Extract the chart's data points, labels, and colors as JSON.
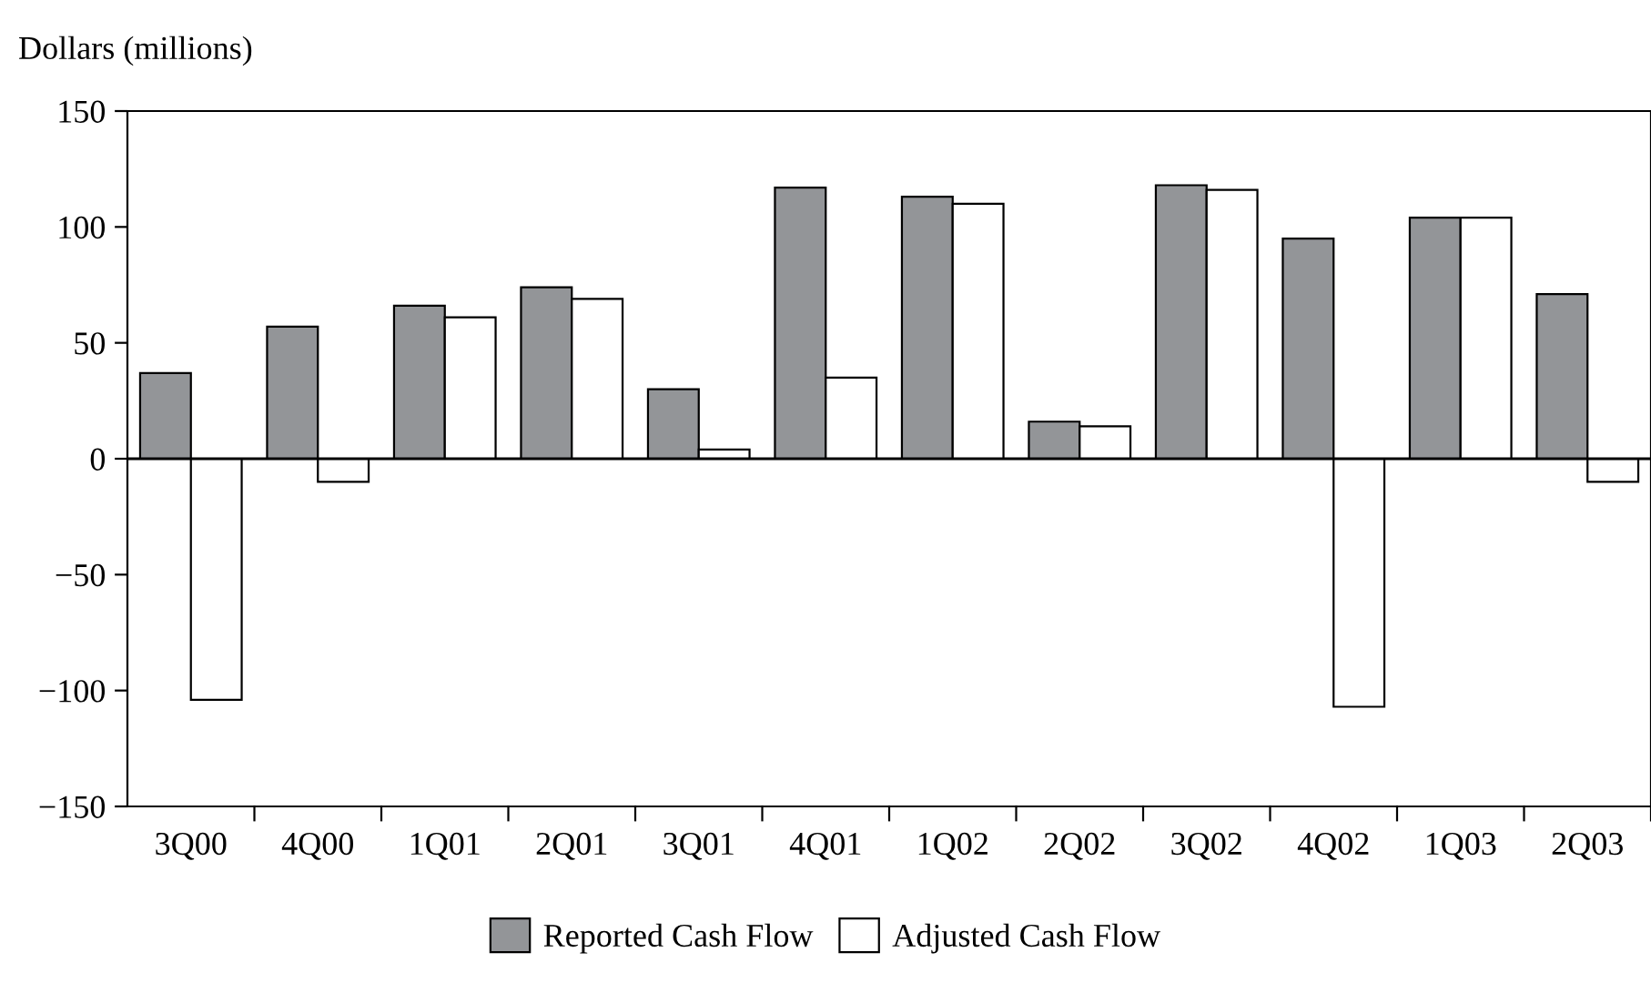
{
  "chart_data": {
    "type": "bar",
    "ylabel": "Dollars (millions)",
    "categories": [
      "3Q00",
      "4Q00",
      "1Q01",
      "2Q01",
      "3Q01",
      "4Q01",
      "1Q02",
      "2Q02",
      "3Q02",
      "4Q02",
      "1Q03",
      "2Q03"
    ],
    "series": [
      {
        "name": "Reported Cash Flow",
        "color": "#939598",
        "values": [
          37,
          57,
          66,
          74,
          30,
          117,
          113,
          16,
          118,
          95,
          104,
          71
        ]
      },
      {
        "name": "Adjusted Cash Flow",
        "color": "#ffffff",
        "values": [
          -104,
          -10,
          61,
          69,
          4,
          35,
          110,
          14,
          116,
          -107,
          104,
          -10
        ]
      }
    ],
    "ylim": [
      -150,
      150
    ],
    "yticks": [
      -150,
      -100,
      -50,
      0,
      50,
      100,
      150
    ],
    "ref_lines": [
      {
        "axis": "y",
        "value": 0
      }
    ],
    "grid": false,
    "legend": "bottom"
  }
}
